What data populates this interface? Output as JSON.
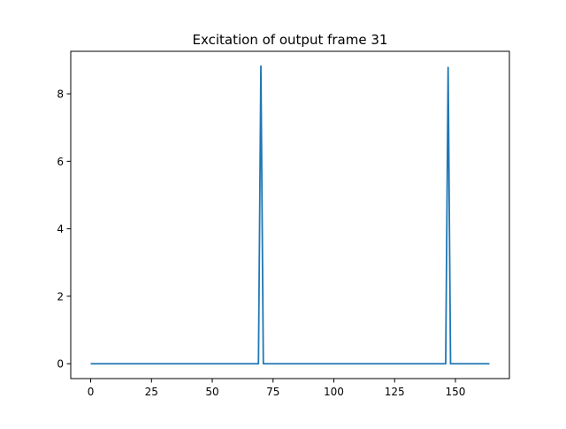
{
  "chart_data": {
    "type": "line",
    "title": "Excitation of output frame 31",
    "xlabel": "",
    "ylabel": "",
    "xlim": [
      -8.2,
      172.2
    ],
    "ylim": [
      -0.44,
      9.26
    ],
    "xticks": [
      0,
      25,
      50,
      75,
      100,
      125,
      150
    ],
    "xtick_labels": [
      "0",
      "25",
      "50",
      "75",
      "100",
      "125",
      "150"
    ],
    "yticks": [
      0,
      2,
      4,
      6,
      8
    ],
    "ytick_labels": [
      "0",
      "2",
      "4",
      "6",
      "8"
    ],
    "grid": false,
    "legend": "none",
    "series": [
      {
        "color": "#1f77b4",
        "x": [
          0,
          69,
          70,
          71,
          146,
          147,
          148,
          164
        ],
        "y": [
          0,
          0,
          8.82,
          0,
          0,
          8.78,
          0,
          0
        ]
      }
    ]
  }
}
